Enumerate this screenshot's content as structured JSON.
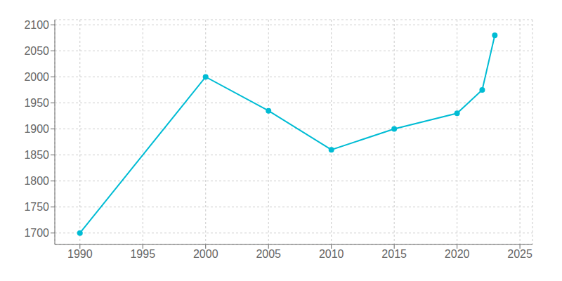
{
  "chart_data": {
    "type": "line",
    "x": [
      1990,
      2000,
      2005,
      2010,
      2015,
      2020,
      2022,
      2023
    ],
    "values": [
      1700,
      2000,
      1935,
      1860,
      1900,
      1930,
      1975,
      2080
    ],
    "color": "#00BCD4",
    "marker": "circle",
    "xlim": [
      1988,
      2026
    ],
    "ylim": [
      1678,
      2110
    ],
    "xticks": [
      1990,
      1995,
      2000,
      2005,
      2010,
      2015,
      2020,
      2025
    ],
    "yticks": [
      1700,
      1750,
      1800,
      1850,
      1900,
      1950,
      2000,
      2050,
      2100
    ],
    "grid": true
  }
}
